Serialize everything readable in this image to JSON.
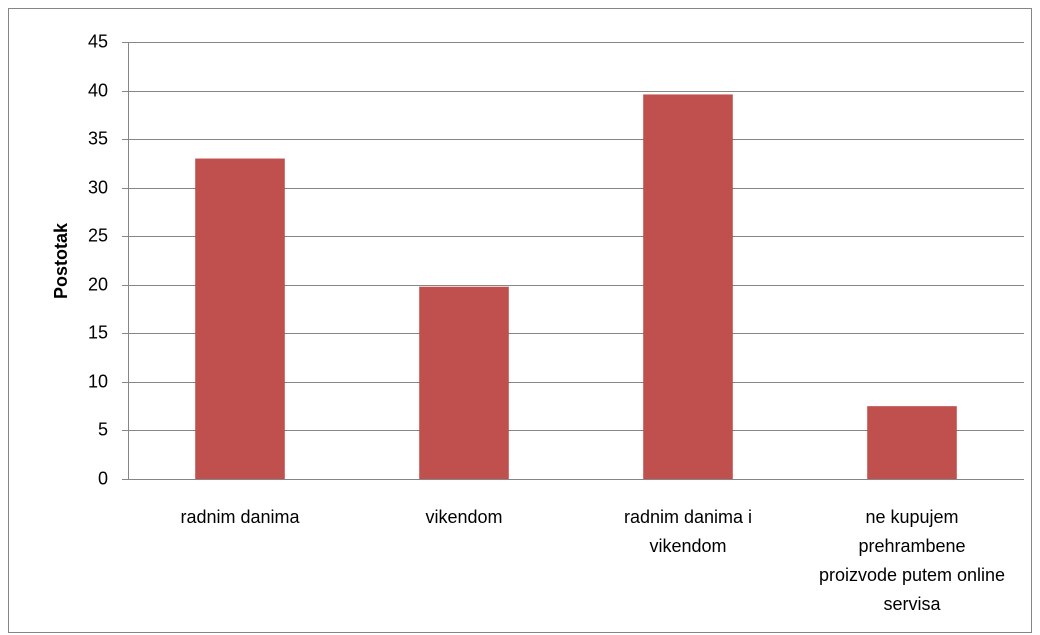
{
  "chart_data": {
    "type": "bar",
    "y_label": "Postotak",
    "categories": [
      "radnim danima",
      "vikendom",
      "radnim danima i vikendom",
      "ne kupujem prehrambene proizvode putem online servisa"
    ],
    "values": [
      33,
      19.8,
      39.6,
      7.5
    ],
    "color": "#c0504d",
    "ylim": [
      0,
      45
    ],
    "yticks": [
      0,
      5,
      10,
      15,
      20,
      25,
      30,
      35,
      40,
      45
    ],
    "grid": true
  }
}
